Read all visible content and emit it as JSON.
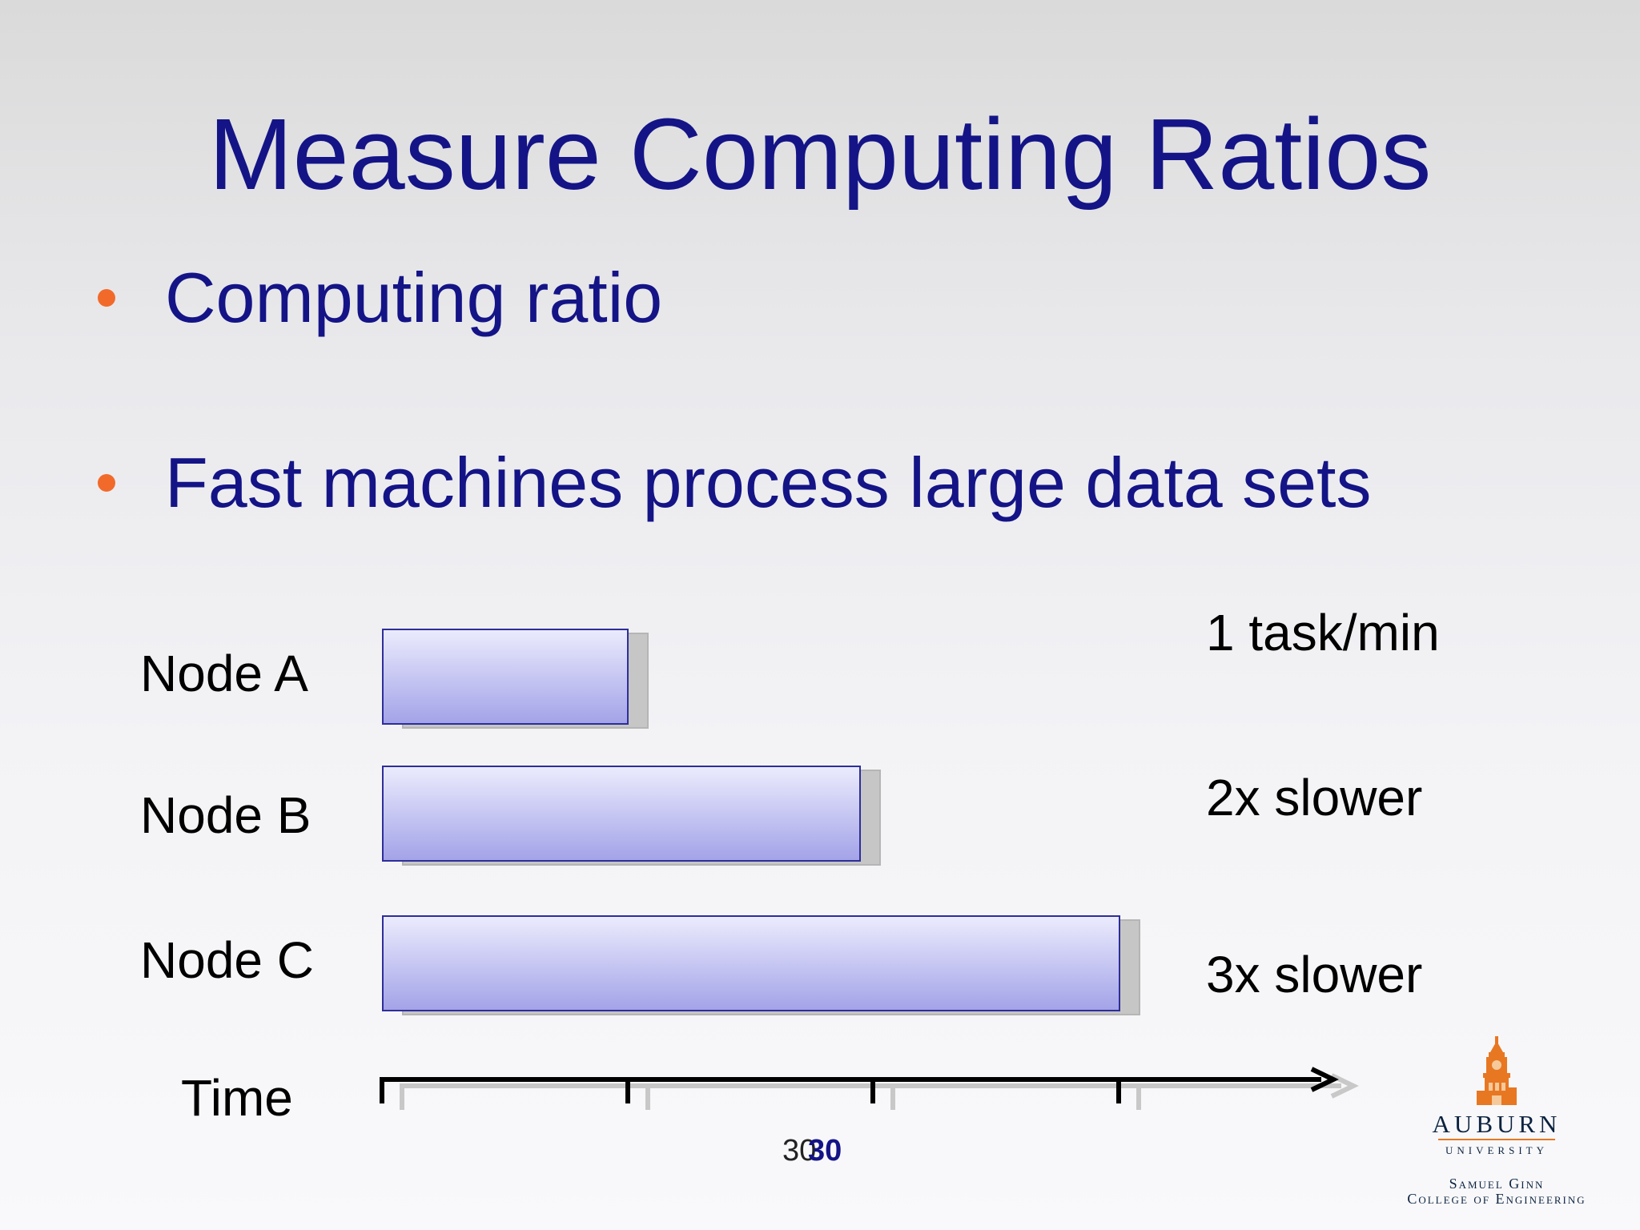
{
  "slide": {
    "title": "Measure Computing Ratios",
    "bullets": [
      "Computing ratio",
      "Fast machines process large data sets"
    ]
  },
  "diagram": {
    "nodes": [
      {
        "label": "Node A",
        "duration_ticks": 1,
        "rate": "1 task/min"
      },
      {
        "label": "Node B",
        "duration_ticks": 2,
        "rate": "2x slower"
      },
      {
        "label": "Node C",
        "duration_ticks": 3,
        "rate": "3x slower"
      }
    ],
    "axis_label": "Time"
  },
  "footer": {
    "page_number": "30",
    "logo": {
      "name": "AUBURN",
      "subtitle": "UNIVERSITY",
      "college_line1": "Samuel Ginn",
      "college_line2": "College of Engineering"
    }
  },
  "colors": {
    "title": "#141487",
    "bullet": "#f26a2a",
    "bar_border": "#2e2e9a",
    "logo_orange": "#e87722",
    "logo_navy": "#0c2340"
  }
}
